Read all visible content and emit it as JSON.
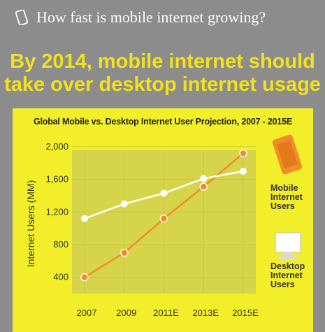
{
  "header": {
    "question": "How fast is mobile internet growing?"
  },
  "headline": {
    "line1": "By 2014, mobile internet should",
    "line2": "take over desktop internet usage"
  },
  "colors": {
    "background": "#8c8c8c",
    "panel": "#f2ee2a",
    "plot_area": "#d6d44a",
    "headline": "#f2e21b",
    "mobile_series": "#f28c28",
    "desktop_series": "#ffffff",
    "phone_icon": "#f28c28",
    "desktop_icon": "#ffffff"
  },
  "chart_data": {
    "type": "line",
    "title": "Global Mobile vs. Desktop Internet User Projection, 2007 - 2015E",
    "xlabel": "",
    "ylabel": "Internet Users (MM)",
    "categories": [
      "2007",
      "2009",
      "2011E",
      "2013E",
      "2015E"
    ],
    "ylim": [
      200,
      2000
    ],
    "yticks": [
      400,
      800,
      1200,
      1600,
      2000
    ],
    "ytick_labels": [
      "400",
      "800",
      "1,200",
      "1,600",
      "2,000"
    ],
    "grid": true,
    "series": [
      {
        "name": "Mobile Internet Users",
        "color": "#f28c28",
        "values": [
          400,
          700,
          1120,
          1510,
          1920
        ]
      },
      {
        "name": "Desktop Internet Users",
        "color": "#ffffff",
        "values": [
          1120,
          1300,
          1430,
          1610,
          1700
        ]
      }
    ],
    "legend": [
      {
        "lines": [
          "Mobile",
          "Internet",
          "Users"
        ],
        "icon": "phone-icon"
      },
      {
        "lines": [
          "Desktop",
          "Internet",
          "Users"
        ],
        "icon": "desktop-monitor-icon"
      }
    ]
  }
}
